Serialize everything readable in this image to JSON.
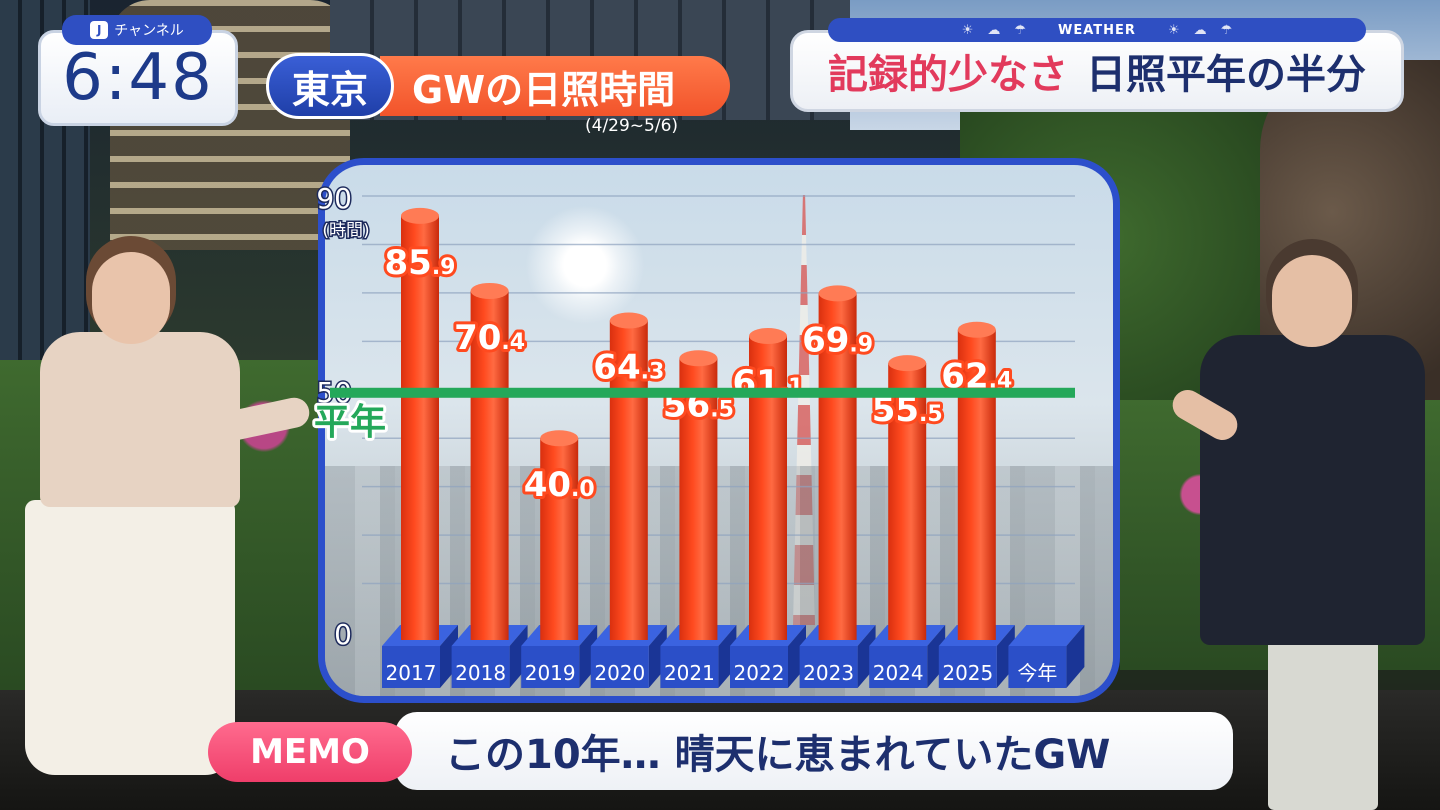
{
  "clock": {
    "channel_label": "チャンネル",
    "time": "6:48"
  },
  "title": {
    "city": "東京",
    "main": "GWの日照時間",
    "period": "(4/29~5/6)"
  },
  "weather": {
    "label": "WEATHER",
    "headline_accent": "記録的少なさ",
    "headline_rest": "日照平年の半分"
  },
  "memo": {
    "label": "MEMO",
    "text": "この10年… 晴天に恵まれていたGW"
  },
  "colors": {
    "bar": "#ff4a1f",
    "normal_line": "#24a85a",
    "base_block": "#2b4fc8",
    "brand_blue": "#2f4fc2",
    "accent_pink": "#ef3e6a"
  },
  "chart_data": {
    "type": "bar",
    "categories": [
      "2017",
      "2018",
      "2019",
      "2020",
      "2021",
      "2022",
      "2023",
      "2024",
      "2025",
      "今年"
    ],
    "values": [
      85.9,
      70.4,
      40.0,
      64.3,
      56.5,
      61.1,
      69.9,
      55.5,
      62.4,
      null
    ],
    "value_labels": [
      {
        "int": "85",
        "dec": ".9"
      },
      {
        "int": "70",
        "dec": ".4"
      },
      {
        "int": "40",
        "dec": ".0"
      },
      {
        "int": "64",
        "dec": ".3"
      },
      {
        "int": "56",
        "dec": ".5"
      },
      {
        "int": "61",
        "dec": ".1"
      },
      {
        "int": "69",
        "dec": ".9"
      },
      {
        "int": "55",
        "dec": ".5"
      },
      {
        "int": "62",
        "dec": ".4"
      },
      null
    ],
    "yticks": [
      "0",
      "50",
      "90"
    ],
    "ylabel": "(時間)",
    "ylim": [
      0,
      90
    ],
    "normal_value": 50,
    "normal_label": "平年",
    "grid": true
  }
}
